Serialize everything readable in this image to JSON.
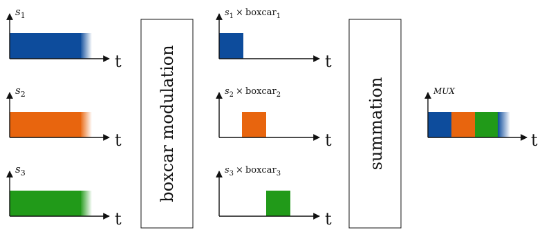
{
  "colors": {
    "s1": "#0d4c9c",
    "s2": "#e8650e",
    "s3": "#219a19",
    "axis": "#111111"
  },
  "inputs": [
    {
      "name": "s",
      "sub": "1",
      "axis": "t",
      "color": "#0d4c9c"
    },
    {
      "name": "s",
      "sub": "2",
      "axis": "t",
      "color": "#e8650e"
    },
    {
      "name": "s",
      "sub": "3",
      "axis": "t",
      "color": "#219a19"
    }
  ],
  "modulation_box": {
    "label": "boxcar modulation"
  },
  "modulated": [
    {
      "name": "s",
      "sub": "1",
      "times": "×",
      "fn": "boxcar",
      "fn_sub": "1",
      "axis": "t",
      "color": "#0d4c9c"
    },
    {
      "name": "s",
      "sub": "2",
      "times": "×",
      "fn": "boxcar",
      "fn_sub": "2",
      "axis": "t",
      "color": "#e8650e"
    },
    {
      "name": "s",
      "sub": "3",
      "times": "×",
      "fn": "boxcar",
      "fn_sub": "3",
      "axis": "t",
      "color": "#219a19"
    }
  ],
  "summation_box": {
    "label": "summation"
  },
  "output": {
    "label": "MUX",
    "axis": "t"
  }
}
